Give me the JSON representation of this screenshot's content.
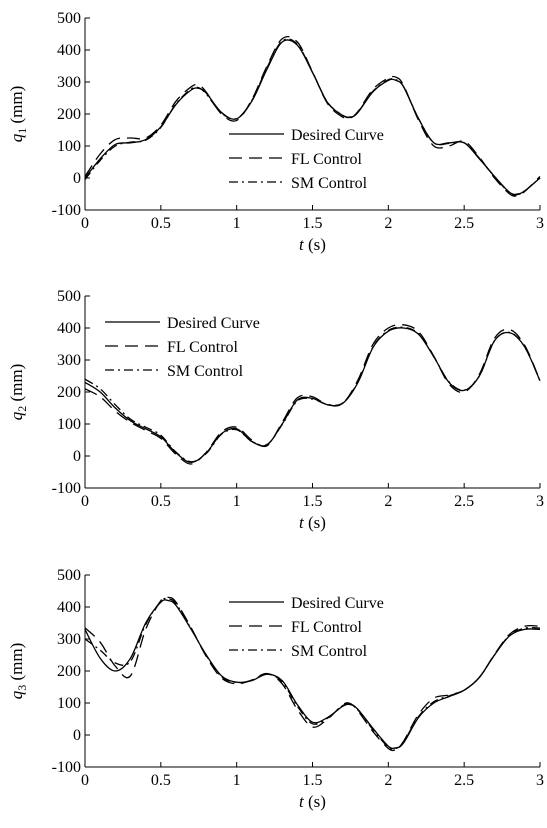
{
  "chart_data": [
    {
      "type": "line",
      "ylabel": "q_1 (mm)",
      "ylabel_symbol": "q",
      "ylabel_subscript": "1",
      "ylabel_unit": "(mm)",
      "xlabel": "t (s)",
      "xlabel_symbol": "t",
      "xlabel_unit": "(s)",
      "xlim": [
        0,
        3
      ],
      "ylim": [
        -100,
        500
      ],
      "xticks": [
        0,
        0.5,
        1,
        1.5,
        2,
        2.5,
        3
      ],
      "xtick_labels": [
        "0",
        "0.5",
        "1",
        "1.5",
        "2",
        "2.5",
        "3"
      ],
      "yticks": [
        -100,
        0,
        100,
        200,
        300,
        400,
        500
      ],
      "ytick_labels": [
        "-100",
        "0",
        "100",
        "200",
        "300",
        "400",
        "500"
      ],
      "grid": false,
      "legend_position": "center-right",
      "series": [
        {
          "name": "Desired Curve",
          "style": "solid",
          "x": [
            0,
            0.1,
            0.2,
            0.3,
            0.4,
            0.5,
            0.6,
            0.7,
            0.75,
            0.8,
            0.9,
            1.0,
            1.1,
            1.2,
            1.3,
            1.4,
            1.5,
            1.6,
            1.7,
            1.75,
            1.8,
            1.9,
            2.0,
            2.05,
            2.1,
            2.2,
            2.3,
            2.4,
            2.5,
            2.6,
            2.7,
            2.8,
            2.85,
            2.9,
            3.0
          ],
          "y": [
            0,
            60,
            105,
            110,
            120,
            160,
            230,
            275,
            280,
            265,
            205,
            185,
            240,
            340,
            425,
            415,
            330,
            235,
            195,
            190,
            205,
            270,
            305,
            305,
            285,
            185,
            110,
            110,
            110,
            60,
            5,
            -45,
            -50,
            -40,
            0
          ]
        },
        {
          "name": "FL Control",
          "style": "dashed",
          "x": [
            0,
            0.1,
            0.2,
            0.3,
            0.4,
            0.5,
            0.6,
            0.7,
            0.75,
            0.8,
            0.9,
            1.0,
            1.1,
            1.2,
            1.3,
            1.4,
            1.5,
            1.6,
            1.7,
            1.75,
            1.8,
            1.9,
            2.0,
            2.05,
            2.1,
            2.2,
            2.3,
            2.4,
            2.5,
            2.6,
            2.7,
            2.8,
            2.85,
            2.9,
            3.0
          ],
          "y": [
            5,
            75,
            120,
            125,
            125,
            165,
            240,
            285,
            290,
            268,
            200,
            180,
            245,
            350,
            435,
            425,
            332,
            232,
            190,
            188,
            208,
            278,
            312,
            315,
            290,
            180,
            100,
            100,
            115,
            65,
            0,
            -50,
            -55,
            -42,
            5
          ]
        },
        {
          "name": "SM Control",
          "style": "dashdot",
          "x": [
            0,
            0.1,
            0.2,
            0.3,
            0.4,
            0.5,
            0.6,
            0.7,
            0.75,
            0.8,
            0.9,
            1.0,
            1.1,
            1.2,
            1.3,
            1.4,
            1.5,
            1.6,
            1.7,
            1.75,
            1.8,
            1.9,
            2.0,
            2.05,
            2.1,
            2.2,
            2.3,
            2.4,
            2.5,
            2.6,
            2.7,
            2.8,
            2.85,
            2.9,
            3.0
          ],
          "y": [
            -5,
            55,
            100,
            112,
            118,
            158,
            232,
            278,
            282,
            262,
            203,
            186,
            242,
            345,
            428,
            418,
            330,
            236,
            196,
            191,
            206,
            272,
            307,
            307,
            286,
            185,
            110,
            108,
            110,
            62,
            4,
            -47,
            -52,
            -40,
            0
          ]
        }
      ]
    },
    {
      "type": "line",
      "ylabel": "q_2 (mm)",
      "ylabel_symbol": "q",
      "ylabel_subscript": "2",
      "ylabel_unit": "(mm)",
      "xlabel": "t (s)",
      "xlabel_symbol": "t",
      "xlabel_unit": "(s)",
      "xlim": [
        0,
        3
      ],
      "ylim": [
        -100,
        500
      ],
      "xticks": [
        0,
        0.5,
        1,
        1.5,
        2,
        2.5,
        3
      ],
      "xtick_labels": [
        "0",
        "0.5",
        "1",
        "1.5",
        "2",
        "2.5",
        "3"
      ],
      "yticks": [
        -100,
        0,
        100,
        200,
        300,
        400,
        500
      ],
      "ytick_labels": [
        "-100",
        "0",
        "100",
        "200",
        "300",
        "400",
        "500"
      ],
      "grid": false,
      "legend_position": "top-left",
      "series": [
        {
          "name": "Desired Curve",
          "style": "solid",
          "x": [
            0,
            0.1,
            0.2,
            0.3,
            0.4,
            0.5,
            0.6,
            0.7,
            0.8,
            0.9,
            1.0,
            1.1,
            1.2,
            1.3,
            1.4,
            1.5,
            1.6,
            1.7,
            1.8,
            1.9,
            2.0,
            2.1,
            2.2,
            2.3,
            2.4,
            2.5,
            2.6,
            2.7,
            2.8,
            2.9,
            3.0
          ],
          "y": [
            230,
            200,
            150,
            110,
            85,
            60,
            10,
            -20,
            10,
            70,
            85,
            45,
            35,
            100,
            175,
            180,
            160,
            165,
            230,
            340,
            390,
            400,
            380,
            310,
            230,
            205,
            250,
            360,
            385,
            340,
            235
          ]
        },
        {
          "name": "FL Control",
          "style": "dashed",
          "x": [
            0,
            0.1,
            0.2,
            0.3,
            0.4,
            0.5,
            0.6,
            0.7,
            0.8,
            0.9,
            1.0,
            1.1,
            1.2,
            1.3,
            1.4,
            1.5,
            1.6,
            1.7,
            1.8,
            1.9,
            2.0,
            2.1,
            2.2,
            2.3,
            2.4,
            2.5,
            2.6,
            2.7,
            2.8,
            2.9,
            3.0
          ],
          "y": [
            210,
            185,
            140,
            105,
            80,
            55,
            5,
            -25,
            12,
            75,
            90,
            50,
            32,
            105,
            182,
            185,
            160,
            165,
            238,
            350,
            400,
            410,
            388,
            312,
            225,
            200,
            255,
            368,
            395,
            345,
            235
          ]
        },
        {
          "name": "SM Control",
          "style": "dashdot",
          "x": [
            0,
            0.1,
            0.2,
            0.3,
            0.4,
            0.5,
            0.6,
            0.7,
            0.8,
            0.9,
            1.0,
            1.1,
            1.2,
            1.3,
            1.4,
            1.5,
            1.6,
            1.7,
            1.8,
            1.9,
            2.0,
            2.1,
            2.2,
            2.3,
            2.4,
            2.5,
            2.6,
            2.7,
            2.8,
            2.9,
            3.0
          ],
          "y": [
            240,
            210,
            160,
            115,
            90,
            65,
            12,
            -18,
            8,
            68,
            82,
            46,
            36,
            98,
            172,
            178,
            161,
            166,
            232,
            342,
            392,
            402,
            382,
            310,
            232,
            206,
            250,
            360,
            386,
            340,
            235
          ]
        }
      ]
    },
    {
      "type": "line",
      "ylabel": "q_3 (mm)",
      "ylabel_symbol": "q",
      "ylabel_subscript": "3",
      "ylabel_unit": "(mm)",
      "xlabel": "t (s)",
      "xlabel_symbol": "t",
      "xlabel_unit": "(s)",
      "xlim": [
        0,
        3
      ],
      "ylim": [
        -100,
        500
      ],
      "xticks": [
        0,
        0.5,
        1,
        1.5,
        2,
        2.5,
        3
      ],
      "xtick_labels": [
        "0",
        "0.5",
        "1",
        "1.5",
        "2",
        "2.5",
        "3"
      ],
      "yticks": [
        -100,
        0,
        100,
        200,
        300,
        400,
        500
      ],
      "ytick_labels": [
        "-100",
        "0",
        "100",
        "200",
        "300",
        "400",
        "500"
      ],
      "grid": false,
      "legend_position": "top-right",
      "series": [
        {
          "name": "Desired Curve",
          "style": "solid",
          "x": [
            0,
            0.1,
            0.2,
            0.3,
            0.4,
            0.5,
            0.55,
            0.6,
            0.7,
            0.8,
            0.9,
            1.0,
            1.1,
            1.2,
            1.3,
            1.4,
            1.5,
            1.6,
            1.7,
            1.75,
            1.8,
            1.9,
            2.0,
            2.05,
            2.1,
            2.2,
            2.3,
            2.4,
            2.5,
            2.6,
            2.7,
            2.8,
            2.9,
            3.0
          ],
          "y": [
            330,
            240,
            200,
            240,
            350,
            415,
            420,
            405,
            330,
            250,
            185,
            165,
            170,
            190,
            170,
            95,
            40,
            55,
            90,
            95,
            80,
            20,
            -35,
            -40,
            -25,
            55,
            100,
            120,
            140,
            180,
            250,
            310,
            330,
            330
          ]
        },
        {
          "name": "FL Control",
          "style": "dashed",
          "x": [
            0,
            0.1,
            0.2,
            0.3,
            0.4,
            0.5,
            0.55,
            0.6,
            0.7,
            0.8,
            0.9,
            1.0,
            1.1,
            1.2,
            1.3,
            1.4,
            1.5,
            1.6,
            1.7,
            1.75,
            1.8,
            1.9,
            2.0,
            2.05,
            2.1,
            2.2,
            2.3,
            2.4,
            2.5,
            2.6,
            2.7,
            2.8,
            2.9,
            3.0
          ],
          "y": [
            335,
            290,
            215,
            185,
            330,
            420,
            430,
            415,
            335,
            245,
            178,
            160,
            172,
            192,
            160,
            80,
            25,
            50,
            95,
            98,
            75,
            10,
            -42,
            -45,
            -20,
            65,
            115,
            125,
            140,
            180,
            252,
            315,
            340,
            340
          ]
        },
        {
          "name": "SM Control",
          "style": "dashdot",
          "x": [
            0,
            0.1,
            0.2,
            0.3,
            0.4,
            0.5,
            0.55,
            0.6,
            0.7,
            0.8,
            0.9,
            1.0,
            1.1,
            1.2,
            1.3,
            1.4,
            1.5,
            1.6,
            1.7,
            1.75,
            1.8,
            1.9,
            2.0,
            2.05,
            2.1,
            2.2,
            2.3,
            2.4,
            2.5,
            2.6,
            2.7,
            2.8,
            2.9,
            3.0
          ],
          "y": [
            300,
            265,
            225,
            230,
            345,
            418,
            425,
            410,
            332,
            248,
            182,
            164,
            171,
            191,
            166,
            90,
            35,
            53,
            92,
            96,
            78,
            16,
            -38,
            -42,
            -22,
            58,
            104,
            122,
            140,
            180,
            250,
            312,
            334,
            334
          ]
        }
      ]
    }
  ]
}
